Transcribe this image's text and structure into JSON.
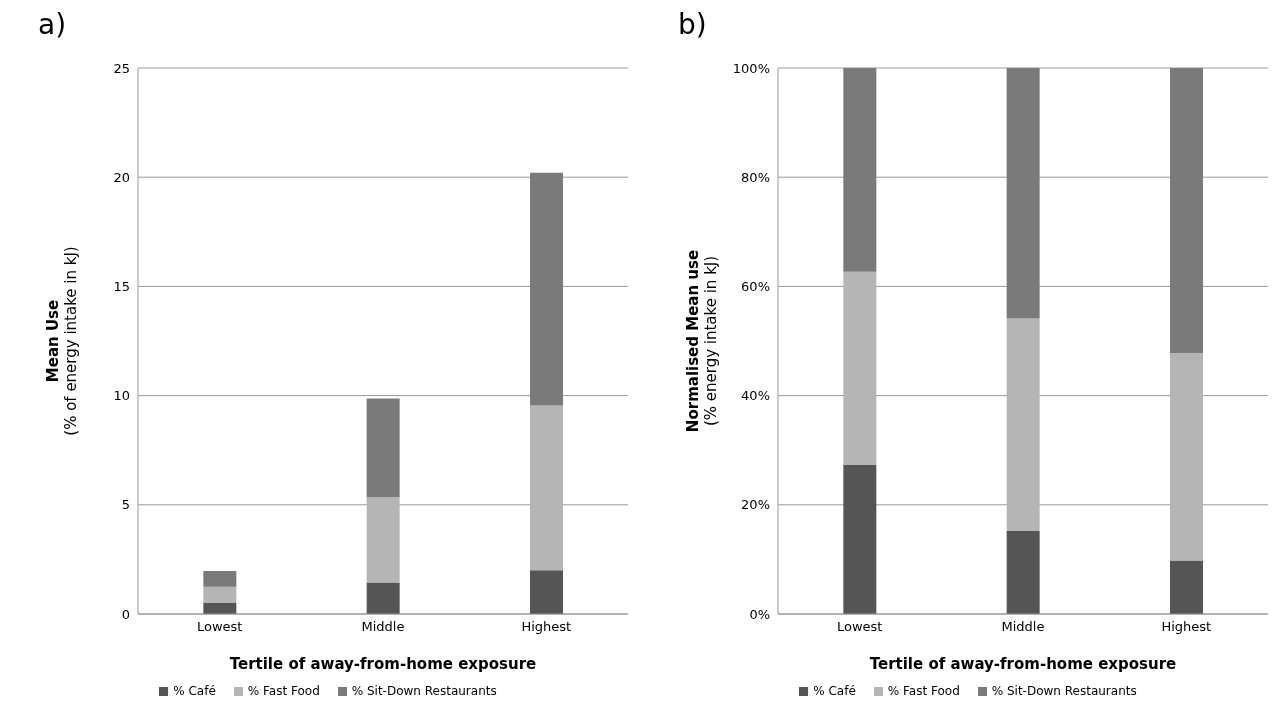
{
  "chart_data": [
    {
      "type": "bar",
      "title": "a)",
      "xlabel": "Tertile of away-from-home exposure",
      "ylabel": "Mean Use\n(% of energy intake in kJ)",
      "categories": [
        "Lowest",
        "Middle",
        "Highest"
      ],
      "stacked": true,
      "series": [
        {
          "name": "% Café",
          "color": "#555555",
          "values": [
            0.5,
            1.44,
            2.0
          ]
        },
        {
          "name": "% Fast Food",
          "color": "#b5b5b5",
          "values": [
            0.75,
            3.9,
            7.55
          ]
        },
        {
          "name": "% Sit-Down Restaurants",
          "color": "#7a7a7a",
          "values": [
            0.72,
            4.53,
            10.65
          ]
        }
      ],
      "ylim": [
        0,
        25
      ],
      "yticks": [
        0,
        5,
        10,
        15,
        20,
        25
      ],
      "grid": "y",
      "legend": "bottom"
    },
    {
      "type": "bar",
      "title": "b)",
      "xlabel": "Tertile of away-from-home exposure",
      "ylabel": "Normalised Mean use\n(% energy intake in kJ)",
      "categories": [
        "Lowest",
        "Middle",
        "Highest"
      ],
      "stacked": true,
      "series": [
        {
          "name": "% Café",
          "color": "#555555",
          "values": [
            27.3,
            15.2,
            9.8
          ]
        },
        {
          "name": "% Fast Food",
          "color": "#b5b5b5",
          "values": [
            35.4,
            38.9,
            38.0
          ]
        },
        {
          "name": "% Sit-Down Restaurants",
          "color": "#7a7a7a",
          "values": [
            37.3,
            45.9,
            52.2
          ]
        }
      ],
      "ylim": [
        0,
        100
      ],
      "yticks": [
        {
          "value": 0,
          "label": "0%"
        },
        {
          "value": 20,
          "label": "20%"
        },
        {
          "value": 40,
          "label": "40%"
        },
        {
          "value": 60,
          "label": "60%"
        },
        {
          "value": 80,
          "label": "80%"
        },
        {
          "value": 100,
          "label": "100%"
        }
      ],
      "grid": "y",
      "legend": "bottom"
    }
  ]
}
